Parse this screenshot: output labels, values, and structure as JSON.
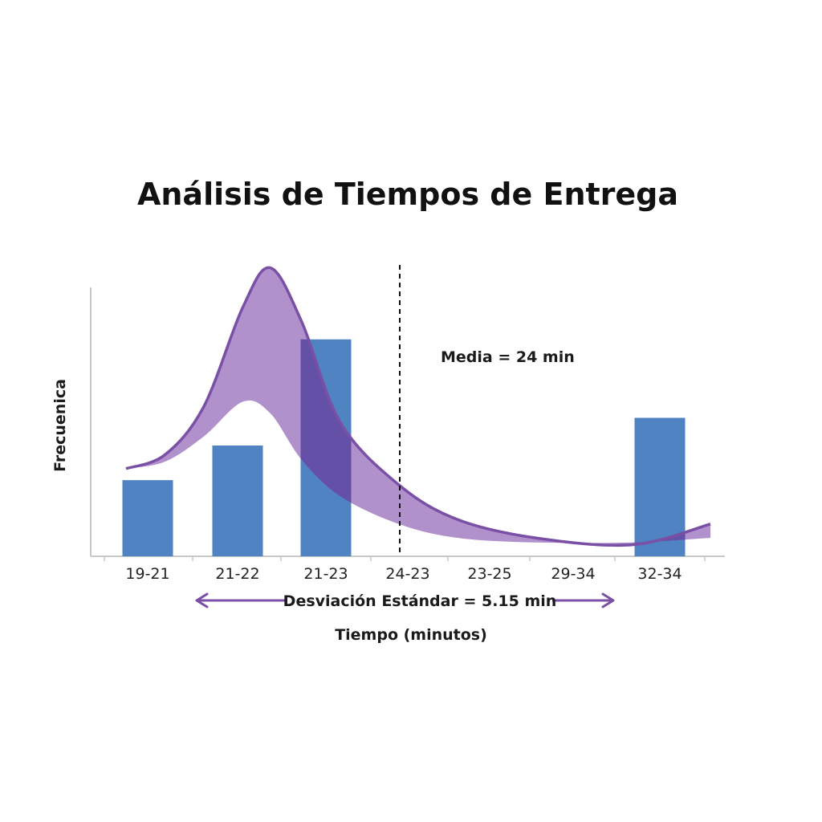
{
  "chart_data": {
    "type": "bar",
    "title": "Análisis de Tiempos de Entrega",
    "xlabel": "Tiempo (minutos)",
    "ylabel": "Frecuenica",
    "categories": [
      "19-21",
      "21-22",
      "21-23",
      "24-23",
      "23-25",
      "29-34",
      "32-34"
    ],
    "values": [
      3.3,
      4.8,
      9.4,
      0,
      0,
      0,
      6.0
    ],
    "ylim": [
      0,
      12
    ],
    "grid": false,
    "annotations": {
      "mean_label": "Media = 24 min",
      "mean_value": 24,
      "std_label": "Desviación Estándar = 5.15 min",
      "std_value": 5.15
    },
    "band": {
      "upper": [
        {
          "x": 19.5,
          "y": 3.8
        },
        {
          "x": 20.5,
          "y": 4.4
        },
        {
          "x": 21.5,
          "y": 6.5
        },
        {
          "x": 22.5,
          "y": 10.8
        },
        {
          "x": 23.2,
          "y": 12.5
        },
        {
          "x": 24,
          "y": 10.2
        },
        {
          "x": 25,
          "y": 5.8
        },
        {
          "x": 26.5,
          "y": 3.1
        },
        {
          "x": 28,
          "y": 1.6
        },
        {
          "x": 30,
          "y": 0.8
        },
        {
          "x": 32.5,
          "y": 0.5
        },
        {
          "x": 34.5,
          "y": 1.4
        }
      ],
      "lower": [
        {
          "x": 19.5,
          "y": 3.8
        },
        {
          "x": 20.5,
          "y": 4.1
        },
        {
          "x": 21.5,
          "y": 5.2
        },
        {
          "x": 22.5,
          "y": 6.7
        },
        {
          "x": 23.2,
          "y": 6.2
        },
        {
          "x": 24,
          "y": 4.2
        },
        {
          "x": 25,
          "y": 2.6
        },
        {
          "x": 26.5,
          "y": 1.4
        },
        {
          "x": 28,
          "y": 0.8
        },
        {
          "x": 30,
          "y": 0.6
        },
        {
          "x": 32.5,
          "y": 0.6
        },
        {
          "x": 34.5,
          "y": 0.8
        }
      ]
    },
    "colors": {
      "bar": "#4f83c2",
      "bar_overlap": "#5e4aa3",
      "band_fill": "#9b72bd",
      "curve": "#7a4fa6",
      "arrow": "#7a4fa6",
      "axis": "#c8c8c8",
      "mean_line": "#111111"
    }
  }
}
